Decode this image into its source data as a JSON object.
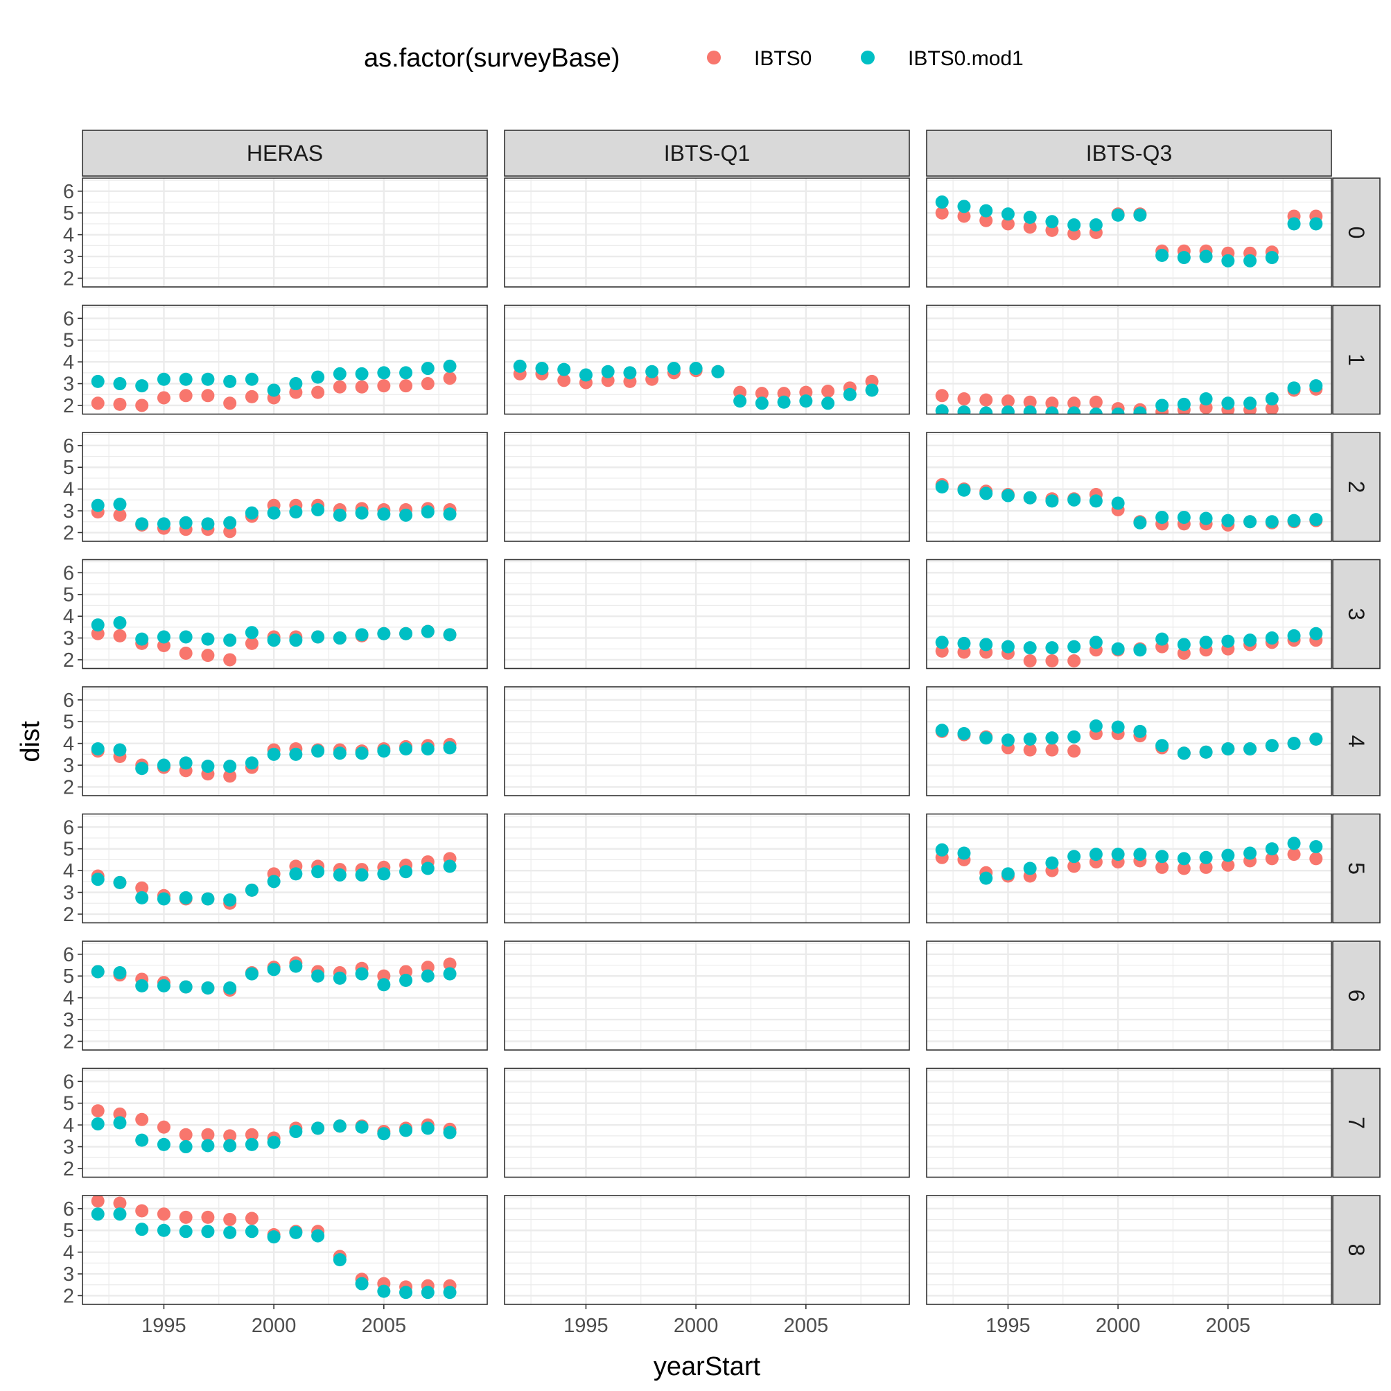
{
  "chart_data": {
    "type": "scatter",
    "xlabel": "yearStart",
    "ylabel": "dist",
    "xlim": [
      1991.3,
      2009.7
    ],
    "ylim": [
      1.6,
      6.6
    ],
    "x_ticks": [
      1995,
      2000,
      2005
    ],
    "y_ticks": [
      2,
      3,
      4,
      5,
      6
    ],
    "legend": {
      "title": "as.factor(surveyBase)",
      "placement": "top",
      "entries": [
        {
          "key": "IBTS0",
          "label": "IBTS0",
          "color": "#F8766D"
        },
        {
          "key": "IBTS0.mod1",
          "label": "IBTS0.mod1",
          "color": "#00BFC4"
        }
      ]
    },
    "facet_columns": [
      "HERAS",
      "IBTS-Q1",
      "IBTS-Q3"
    ],
    "facet_rows": [
      "0",
      "1",
      "2",
      "3",
      "4",
      "5",
      "6",
      "7",
      "8"
    ],
    "grid": true,
    "panels": [
      {
        "col": "IBTS-Q3",
        "row": "0",
        "x": [
          1992,
          1993,
          1994,
          1995,
          1996,
          1997,
          1998,
          1999,
          2000,
          2001,
          2002,
          2003,
          2004,
          2005,
          2006,
          2007,
          2008,
          2009
        ],
        "IBTS0": [
          5.0,
          4.85,
          4.65,
          4.5,
          4.35,
          4.2,
          4.05,
          4.1,
          4.95,
          4.95,
          3.25,
          3.25,
          3.25,
          3.15,
          3.15,
          3.2,
          4.85,
          4.85
        ],
        "IBTS0.mod1": [
          5.5,
          5.3,
          5.1,
          4.95,
          4.8,
          4.6,
          4.45,
          4.45,
          4.9,
          4.9,
          3.05,
          2.95,
          3.0,
          2.8,
          2.8,
          2.95,
          4.5,
          4.5
        ]
      },
      {
        "col": "HERAS",
        "row": "1",
        "x": [
          1992,
          1993,
          1994,
          1995,
          1996,
          1997,
          1998,
          1999,
          2000,
          2001,
          2002,
          2003,
          2004,
          2005,
          2006,
          2007,
          2008
        ],
        "IBTS0": [
          2.1,
          2.05,
          2.0,
          2.35,
          2.45,
          2.45,
          2.1,
          2.4,
          2.35,
          2.6,
          2.6,
          2.85,
          2.85,
          2.9,
          2.9,
          3.0,
          3.25
        ],
        "IBTS0.mod1": [
          3.1,
          3.0,
          2.9,
          3.2,
          3.2,
          3.2,
          3.1,
          3.2,
          2.7,
          3.0,
          3.3,
          3.45,
          3.45,
          3.5,
          3.5,
          3.7,
          3.8
        ]
      },
      {
        "col": "IBTS-Q1",
        "row": "1",
        "x": [
          1992,
          1993,
          1994,
          1995,
          1996,
          1997,
          1998,
          1999,
          2000,
          2001,
          2002,
          2003,
          2004,
          2005,
          2006,
          2007,
          2008
        ],
        "IBTS0": [
          3.45,
          3.45,
          3.15,
          3.05,
          3.15,
          3.1,
          3.2,
          3.5,
          3.6,
          3.55,
          2.6,
          2.55,
          2.55,
          2.6,
          2.65,
          2.8,
          3.1
        ],
        "IBTS0.mod1": [
          3.8,
          3.7,
          3.65,
          3.4,
          3.55,
          3.5,
          3.55,
          3.7,
          3.7,
          3.55,
          2.2,
          2.1,
          2.15,
          2.2,
          2.1,
          2.5,
          2.7
        ]
      },
      {
        "col": "IBTS-Q3",
        "row": "1",
        "x": [
          1992,
          1993,
          1994,
          1995,
          1996,
          1997,
          1998,
          1999,
          2000,
          2001,
          2002,
          2003,
          2004,
          2005,
          2006,
          2007,
          2008,
          2009
        ],
        "IBTS0": [
          2.45,
          2.3,
          2.25,
          2.2,
          2.15,
          2.1,
          2.1,
          2.15,
          1.85,
          1.8,
          1.7,
          1.8,
          1.9,
          1.8,
          1.8,
          1.85,
          2.7,
          2.75
        ],
        "IBTS0.mod1": [
          1.75,
          1.7,
          1.65,
          1.7,
          1.7,
          1.65,
          1.65,
          1.6,
          1.6,
          1.65,
          2.0,
          2.05,
          2.3,
          2.1,
          2.1,
          2.3,
          2.8,
          2.9
        ]
      },
      {
        "col": "HERAS",
        "row": "2",
        "x": [
          1992,
          1993,
          1994,
          1995,
          1996,
          1997,
          1998,
          1999,
          2000,
          2001,
          2002,
          2003,
          2004,
          2005,
          2006,
          2007,
          2008
        ],
        "IBTS0": [
          2.95,
          2.8,
          2.35,
          2.2,
          2.15,
          2.15,
          2.05,
          2.75,
          3.25,
          3.25,
          3.25,
          3.05,
          3.1,
          3.05,
          3.05,
          3.1,
          3.05
        ],
        "IBTS0.mod1": [
          3.25,
          3.3,
          2.4,
          2.4,
          2.45,
          2.4,
          2.45,
          2.9,
          2.9,
          2.95,
          3.05,
          2.8,
          2.9,
          2.85,
          2.8,
          2.95,
          2.85
        ]
      },
      {
        "col": "IBTS-Q3",
        "row": "2",
        "x": [
          1992,
          1993,
          1994,
          1995,
          1996,
          1997,
          1998,
          1999,
          2000,
          2001,
          2002,
          2003,
          2004,
          2005,
          2006,
          2007,
          2008,
          2009
        ],
        "IBTS0": [
          4.2,
          4.0,
          3.9,
          3.75,
          3.6,
          3.55,
          3.55,
          3.75,
          3.05,
          2.5,
          2.4,
          2.4,
          2.4,
          2.35,
          2.5,
          2.45,
          2.5,
          2.55
        ],
        "IBTS0.mod1": [
          4.1,
          3.95,
          3.8,
          3.7,
          3.6,
          3.45,
          3.5,
          3.45,
          3.35,
          2.45,
          2.7,
          2.7,
          2.65,
          2.55,
          2.5,
          2.5,
          2.55,
          2.6
        ]
      },
      {
        "col": "HERAS",
        "row": "3",
        "x": [
          1992,
          1993,
          1994,
          1995,
          1996,
          1997,
          1998,
          1999,
          2000,
          2001,
          2002,
          2003,
          2004,
          2005,
          2006,
          2007,
          2008
        ],
        "IBTS0": [
          3.2,
          3.1,
          2.75,
          2.65,
          2.3,
          2.2,
          2.0,
          2.75,
          3.05,
          3.05,
          3.05,
          3.0,
          3.1,
          3.2,
          3.2,
          3.3,
          3.15
        ],
        "IBTS0.mod1": [
          3.6,
          3.7,
          2.95,
          3.05,
          3.05,
          2.95,
          2.9,
          3.25,
          2.9,
          2.9,
          3.05,
          3.0,
          3.15,
          3.2,
          3.2,
          3.3,
          3.15
        ]
      },
      {
        "col": "IBTS-Q3",
        "row": "3",
        "x": [
          1992,
          1993,
          1994,
          1995,
          1996,
          1997,
          1998,
          1999,
          2000,
          2001,
          2002,
          2003,
          2004,
          2005,
          2006,
          2007,
          2008,
          2009
        ],
        "IBTS0": [
          2.4,
          2.35,
          2.35,
          2.3,
          1.95,
          1.95,
          1.95,
          2.45,
          2.45,
          2.5,
          2.6,
          2.3,
          2.45,
          2.5,
          2.7,
          2.8,
          2.9,
          2.9
        ],
        "IBTS0.mod1": [
          2.8,
          2.75,
          2.7,
          2.6,
          2.55,
          2.55,
          2.6,
          2.8,
          2.5,
          2.45,
          2.95,
          2.7,
          2.8,
          2.85,
          2.9,
          3.0,
          3.1,
          3.2
        ]
      },
      {
        "col": "HERAS",
        "row": "4",
        "x": [
          1992,
          1993,
          1994,
          1995,
          1996,
          1997,
          1998,
          1999,
          2000,
          2001,
          2002,
          2003,
          2004,
          2005,
          2006,
          2007,
          2008
        ],
        "IBTS0": [
          3.65,
          3.4,
          3.0,
          2.9,
          2.75,
          2.6,
          2.5,
          2.9,
          3.7,
          3.75,
          3.7,
          3.7,
          3.65,
          3.75,
          3.85,
          3.9,
          3.95
        ],
        "IBTS0.mod1": [
          3.75,
          3.7,
          2.85,
          3.0,
          3.1,
          2.95,
          2.95,
          3.1,
          3.5,
          3.5,
          3.65,
          3.55,
          3.55,
          3.65,
          3.75,
          3.75,
          3.8
        ]
      },
      {
        "col": "IBTS-Q3",
        "row": "4",
        "x": [
          1992,
          1993,
          1994,
          1995,
          1996,
          1997,
          1998,
          1999,
          2000,
          2001,
          2002,
          2003,
          2004,
          2005,
          2006,
          2007,
          2008,
          2009
        ],
        "IBTS0": [
          4.55,
          4.4,
          4.3,
          3.8,
          3.7,
          3.7,
          3.65,
          4.45,
          4.45,
          4.35,
          3.8,
          3.55,
          3.6,
          3.75,
          3.75,
          3.9,
          4.0,
          4.2
        ],
        "IBTS0.mod1": [
          4.6,
          4.45,
          4.25,
          4.15,
          4.2,
          4.25,
          4.3,
          4.8,
          4.75,
          4.55,
          3.9,
          3.55,
          3.6,
          3.75,
          3.75,
          3.9,
          4.0,
          4.2
        ]
      },
      {
        "col": "HERAS",
        "row": "5",
        "x": [
          1992,
          1993,
          1994,
          1995,
          1996,
          1997,
          1998,
          1999,
          2000,
          2001,
          2002,
          2003,
          2004,
          2005,
          2006,
          2007,
          2008
        ],
        "IBTS0": [
          3.75,
          3.45,
          3.2,
          2.85,
          2.7,
          2.7,
          2.5,
          3.1,
          3.85,
          4.2,
          4.2,
          4.05,
          4.05,
          4.15,
          4.25,
          4.4,
          4.55
        ],
        "IBTS0.mod1": [
          3.6,
          3.45,
          2.75,
          2.7,
          2.75,
          2.7,
          2.65,
          3.1,
          3.5,
          3.85,
          3.95,
          3.8,
          3.8,
          3.85,
          3.95,
          4.1,
          4.2
        ]
      },
      {
        "col": "IBTS-Q3",
        "row": "5",
        "x": [
          1992,
          1993,
          1994,
          1995,
          1996,
          1997,
          1998,
          1999,
          2000,
          2001,
          2002,
          2003,
          2004,
          2005,
          2006,
          2007,
          2008,
          2009
        ],
        "IBTS0": [
          4.6,
          4.5,
          3.9,
          3.75,
          3.75,
          4.0,
          4.2,
          4.4,
          4.4,
          4.45,
          4.15,
          4.1,
          4.15,
          4.25,
          4.45,
          4.55,
          4.75,
          4.55
        ],
        "IBTS0.mod1": [
          4.95,
          4.8,
          3.65,
          3.85,
          4.1,
          4.35,
          4.65,
          4.75,
          4.75,
          4.75,
          4.65,
          4.55,
          4.6,
          4.7,
          4.8,
          5.0,
          5.25,
          5.1
        ]
      },
      {
        "col": "HERAS",
        "row": "6",
        "x": [
          1992,
          1993,
          1994,
          1995,
          1996,
          1997,
          1998,
          1999,
          2000,
          2001,
          2002,
          2003,
          2004,
          2005,
          2006,
          2007,
          2008
        ],
        "IBTS0": [
          5.2,
          5.05,
          4.85,
          4.7,
          4.5,
          4.45,
          4.35,
          5.15,
          5.4,
          5.6,
          5.2,
          5.15,
          5.35,
          5.0,
          5.2,
          5.4,
          5.55
        ],
        "IBTS0.mod1": [
          5.2,
          5.15,
          4.55,
          4.55,
          4.5,
          4.45,
          4.45,
          5.1,
          5.3,
          5.45,
          5.0,
          4.9,
          5.1,
          4.6,
          4.8,
          5.0,
          5.1
        ]
      },
      {
        "col": "HERAS",
        "row": "7",
        "x": [
          1992,
          1993,
          1994,
          1995,
          1996,
          1997,
          1998,
          1999,
          2000,
          2001,
          2002,
          2003,
          2004,
          2005,
          2006,
          2007,
          2008
        ],
        "IBTS0": [
          4.65,
          4.5,
          4.25,
          3.9,
          3.55,
          3.55,
          3.5,
          3.55,
          3.4,
          3.85,
          3.85,
          3.95,
          3.95,
          3.7,
          3.85,
          4.0,
          3.8
        ],
        "IBTS0.mod1": [
          4.05,
          4.1,
          3.3,
          3.1,
          3.0,
          3.05,
          3.05,
          3.1,
          3.2,
          3.7,
          3.85,
          3.95,
          3.9,
          3.6,
          3.75,
          3.85,
          3.65
        ]
      },
      {
        "col": "HERAS",
        "row": "8",
        "x": [
          1992,
          1993,
          1994,
          1995,
          1996,
          1997,
          1998,
          1999,
          2000,
          2001,
          2002,
          2003,
          2004,
          2005,
          2006,
          2007,
          2008
        ],
        "IBTS0": [
          6.35,
          6.25,
          5.9,
          5.75,
          5.6,
          5.6,
          5.5,
          5.55,
          4.8,
          4.95,
          4.95,
          3.8,
          2.75,
          2.55,
          2.4,
          2.45,
          2.45
        ],
        "IBTS0.mod1": [
          5.75,
          5.75,
          5.05,
          5.0,
          4.95,
          4.95,
          4.9,
          4.95,
          4.7,
          4.9,
          4.75,
          3.65,
          2.55,
          2.2,
          2.15,
          2.15,
          2.15
        ]
      }
    ]
  }
}
